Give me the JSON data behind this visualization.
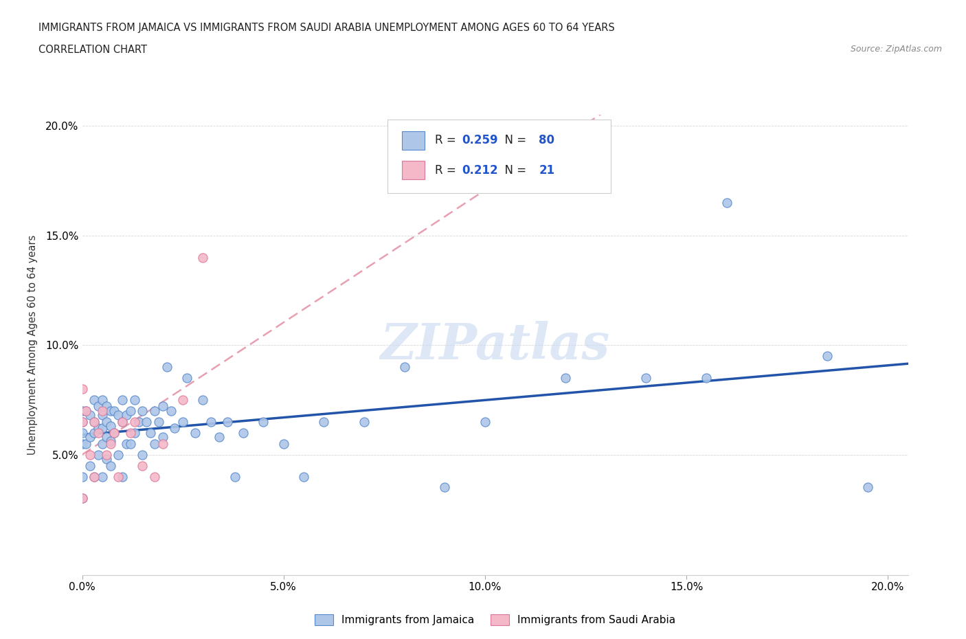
{
  "title_line1": "IMMIGRANTS FROM JAMAICA VS IMMIGRANTS FROM SAUDI ARABIA UNEMPLOYMENT AMONG AGES 60 TO 64 YEARS",
  "title_line2": "CORRELATION CHART",
  "source": "Source: ZipAtlas.com",
  "ylabel": "Unemployment Among Ages 60 to 64 years",
  "xlim": [
    0.0,
    0.205
  ],
  "ylim": [
    -0.005,
    0.205
  ],
  "xtick_vals": [
    0.0,
    0.05,
    0.1,
    0.15,
    0.2
  ],
  "xtick_labels": [
    "0.0%",
    "5.0%",
    "10.0%",
    "15.0%",
    "20.0%"
  ],
  "ytick_vals": [
    0.05,
    0.1,
    0.15,
    0.2
  ],
  "ytick_labels": [
    "5.0%",
    "10.0%",
    "15.0%",
    "20.0%"
  ],
  "jamaica_color": "#aec6e8",
  "saudi_color": "#f4b8c8",
  "jamaica_edge_color": "#5588cc",
  "saudi_edge_color": "#dd7799",
  "jamaica_trend_color": "#2255aa",
  "saudi_trend_color": "#e8a0b0",
  "R_jamaica": 0.259,
  "N_jamaica": 80,
  "R_saudi": 0.212,
  "N_saudi": 21,
  "watermark": "ZIPatlas",
  "legend_jamaica": "Immigrants from Jamaica",
  "legend_saudi": "Immigrants from Saudi Arabia",
  "jamaica_x": [
    0.0,
    0.0,
    0.0,
    0.0,
    0.0,
    0.0,
    0.001,
    0.001,
    0.002,
    0.002,
    0.002,
    0.003,
    0.003,
    0.003,
    0.003,
    0.004,
    0.004,
    0.004,
    0.005,
    0.005,
    0.005,
    0.005,
    0.005,
    0.006,
    0.006,
    0.006,
    0.006,
    0.007,
    0.007,
    0.007,
    0.007,
    0.008,
    0.008,
    0.009,
    0.009,
    0.01,
    0.01,
    0.01,
    0.011,
    0.011,
    0.012,
    0.012,
    0.013,
    0.013,
    0.014,
    0.015,
    0.015,
    0.016,
    0.017,
    0.018,
    0.018,
    0.019,
    0.02,
    0.02,
    0.021,
    0.022,
    0.023,
    0.025,
    0.026,
    0.028,
    0.03,
    0.032,
    0.034,
    0.036,
    0.038,
    0.04,
    0.045,
    0.05,
    0.055,
    0.06,
    0.07,
    0.08,
    0.09,
    0.1,
    0.12,
    0.14,
    0.155,
    0.16,
    0.185,
    0.195
  ],
  "jamaica_y": [
    0.07,
    0.065,
    0.06,
    0.055,
    0.04,
    0.03,
    0.07,
    0.055,
    0.068,
    0.058,
    0.045,
    0.075,
    0.065,
    0.06,
    0.04,
    0.072,
    0.062,
    0.05,
    0.075,
    0.068,
    0.062,
    0.055,
    0.04,
    0.072,
    0.065,
    0.058,
    0.048,
    0.07,
    0.063,
    0.056,
    0.045,
    0.07,
    0.06,
    0.068,
    0.05,
    0.075,
    0.065,
    0.04,
    0.068,
    0.055,
    0.07,
    0.055,
    0.075,
    0.06,
    0.065,
    0.07,
    0.05,
    0.065,
    0.06,
    0.07,
    0.055,
    0.065,
    0.072,
    0.058,
    0.09,
    0.07,
    0.062,
    0.065,
    0.085,
    0.06,
    0.075,
    0.065,
    0.058,
    0.065,
    0.04,
    0.06,
    0.065,
    0.055,
    0.04,
    0.065,
    0.065,
    0.09,
    0.035,
    0.065,
    0.085,
    0.085,
    0.085,
    0.165,
    0.095,
    0.035
  ],
  "saudi_x": [
    0.0,
    0.0,
    0.0,
    0.001,
    0.002,
    0.003,
    0.003,
    0.004,
    0.005,
    0.006,
    0.007,
    0.008,
    0.009,
    0.01,
    0.012,
    0.013,
    0.015,
    0.018,
    0.02,
    0.025,
    0.03
  ],
  "saudi_y": [
    0.08,
    0.065,
    0.03,
    0.07,
    0.05,
    0.065,
    0.04,
    0.06,
    0.07,
    0.05,
    0.055,
    0.06,
    0.04,
    0.065,
    0.06,
    0.065,
    0.045,
    0.04,
    0.055,
    0.075,
    0.14
  ]
}
